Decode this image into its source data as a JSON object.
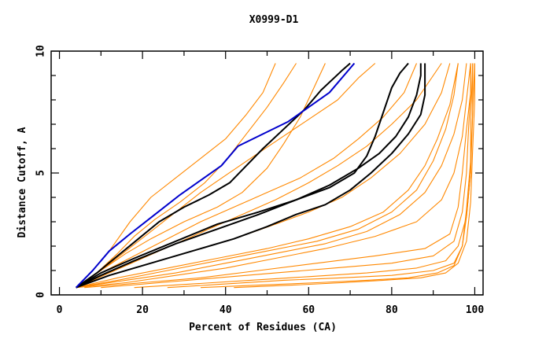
{
  "chart_data": {
    "type": "line",
    "title": "X0999-D1",
    "xlabel": "Percent of Residues (CA)",
    "ylabel": "Distance Cutoff, A",
    "xlim": [
      -2,
      102
    ],
    "ylim": [
      0,
      10
    ],
    "x_ticks": [
      0,
      20,
      40,
      60,
      80,
      100
    ],
    "x_tick_labels": [
      "0",
      "20",
      "40",
      "60",
      "80",
      "100"
    ],
    "x_minor_ticks": [
      10,
      30,
      50,
      70,
      90
    ],
    "y_ticks": [
      0,
      5,
      10
    ],
    "y_tick_labels": [
      "0",
      "5",
      "10"
    ],
    "y_minor_ticks": [
      1,
      2,
      3,
      4,
      6,
      7,
      8,
      9
    ],
    "grid": false,
    "colors": {
      "orange": "#ff8800",
      "black": "#000000",
      "blue": "#0000cc"
    },
    "series": [
      {
        "name": "highlight-blue",
        "color": "blue",
        "points": [
          [
            4,
            0.3
          ],
          [
            8,
            1.0
          ],
          [
            12,
            1.8
          ],
          [
            17,
            2.5
          ],
          [
            23,
            3.3
          ],
          [
            29,
            4.1
          ],
          [
            34,
            4.7
          ],
          [
            39,
            5.3
          ],
          [
            43,
            6.1
          ],
          [
            49,
            6.6
          ],
          [
            55,
            7.1
          ],
          [
            60,
            7.7
          ],
          [
            65,
            8.3
          ],
          [
            71,
            9.5
          ]
        ]
      },
      {
        "name": "black-1",
        "color": "black",
        "points": [
          [
            4,
            0.3
          ],
          [
            9,
            0.9
          ],
          [
            14,
            1.6
          ],
          [
            19,
            2.3
          ],
          [
            24,
            3.0
          ],
          [
            30,
            3.6
          ],
          [
            36,
            4.1
          ],
          [
            41,
            4.6
          ],
          [
            45,
            5.3
          ],
          [
            49,
            6.0
          ],
          [
            54,
            6.8
          ],
          [
            59,
            7.6
          ],
          [
            63,
            8.4
          ],
          [
            68,
            9.2
          ],
          [
            70,
            9.5
          ]
        ]
      },
      {
        "name": "black-2",
        "color": "black",
        "points": [
          [
            4,
            0.3
          ],
          [
            10,
            0.9
          ],
          [
            18,
            1.5
          ],
          [
            28,
            2.2
          ],
          [
            38,
            2.9
          ],
          [
            48,
            3.4
          ],
          [
            57,
            3.9
          ],
          [
            65,
            4.4
          ],
          [
            71,
            5.0
          ],
          [
            74,
            5.7
          ],
          [
            76,
            6.5
          ],
          [
            78,
            7.5
          ],
          [
            80,
            8.5
          ],
          [
            82,
            9.1
          ],
          [
            84,
            9.5
          ]
        ]
      },
      {
        "name": "black-3",
        "color": "black",
        "points": [
          [
            4,
            0.3
          ],
          [
            10,
            0.8
          ],
          [
            18,
            1.4
          ],
          [
            28,
            2.1
          ],
          [
            38,
            2.7
          ],
          [
            48,
            3.3
          ],
          [
            57,
            3.9
          ],
          [
            65,
            4.5
          ],
          [
            72,
            5.2
          ],
          [
            77,
            5.8
          ],
          [
            81,
            6.5
          ],
          [
            84,
            7.3
          ],
          [
            86,
            8.2
          ],
          [
            87,
            9.0
          ],
          [
            87,
            9.5
          ]
        ]
      },
      {
        "name": "black-4",
        "color": "black",
        "points": [
          [
            4,
            0.3
          ],
          [
            12,
            0.8
          ],
          [
            22,
            1.3
          ],
          [
            32,
            1.8
          ],
          [
            42,
            2.3
          ],
          [
            50,
            2.8
          ],
          [
            57,
            3.3
          ],
          [
            64,
            3.7
          ],
          [
            70,
            4.3
          ],
          [
            75,
            5.0
          ],
          [
            80,
            5.8
          ],
          [
            84,
            6.6
          ],
          [
            87,
            7.4
          ],
          [
            88,
            8.2
          ],
          [
            88,
            9.0
          ],
          [
            88,
            9.5
          ]
        ]
      },
      {
        "name": "orange-1",
        "color": "orange",
        "points": [
          [
            4,
            0.3
          ],
          [
            8,
            1.0
          ],
          [
            12,
            1.8
          ],
          [
            17,
            3.0
          ],
          [
            22,
            4.0
          ],
          [
            28,
            4.8
          ],
          [
            34,
            5.6
          ],
          [
            40,
            6.4
          ],
          [
            45,
            7.4
          ],
          [
            49,
            8.3
          ],
          [
            52,
            9.5
          ]
        ]
      },
      {
        "name": "orange-2",
        "color": "orange",
        "points": [
          [
            4,
            0.3
          ],
          [
            9,
            0.9
          ],
          [
            14,
            1.7
          ],
          [
            18,
            2.4
          ],
          [
            23,
            3.1
          ],
          [
            29,
            3.8
          ],
          [
            35,
            4.6
          ],
          [
            40,
            5.5
          ],
          [
            45,
            6.6
          ],
          [
            50,
            7.7
          ],
          [
            54,
            8.7
          ],
          [
            57,
            9.5
          ]
        ]
      },
      {
        "name": "orange-3",
        "color": "orange",
        "points": [
          [
            4,
            0.3
          ],
          [
            10,
            1.0
          ],
          [
            16,
            1.7
          ],
          [
            22,
            2.3
          ],
          [
            30,
            3.0
          ],
          [
            38,
            3.6
          ],
          [
            44,
            4.2
          ],
          [
            50,
            5.2
          ],
          [
            54,
            6.2
          ],
          [
            58,
            7.3
          ],
          [
            61,
            8.4
          ],
          [
            64,
            9.5
          ]
        ]
      },
      {
        "name": "orange-4",
        "color": "orange",
        "points": [
          [
            4,
            0.3
          ],
          [
            10,
            1.0
          ],
          [
            16,
            1.8
          ],
          [
            22,
            2.6
          ],
          [
            28,
            3.4
          ],
          [
            34,
            4.2
          ],
          [
            40,
            4.9
          ],
          [
            46,
            5.6
          ],
          [
            53,
            6.4
          ],
          [
            60,
            7.2
          ],
          [
            67,
            8.0
          ],
          [
            72,
            8.9
          ],
          [
            76,
            9.5
          ]
        ]
      },
      {
        "name": "orange-5",
        "color": "orange",
        "points": [
          [
            4,
            0.3
          ],
          [
            10,
            0.9
          ],
          [
            18,
            1.6
          ],
          [
            26,
            2.3
          ],
          [
            34,
            3.0
          ],
          [
            42,
            3.6
          ],
          [
            50,
            4.2
          ],
          [
            58,
            4.8
          ],
          [
            66,
            5.6
          ],
          [
            72,
            6.4
          ],
          [
            78,
            7.3
          ],
          [
            83,
            8.3
          ],
          [
            86,
            9.5
          ]
        ]
      },
      {
        "name": "orange-6",
        "color": "orange",
        "points": [
          [
            4,
            0.3
          ],
          [
            12,
            0.9
          ],
          [
            20,
            1.5
          ],
          [
            28,
            2.1
          ],
          [
            36,
            2.7
          ],
          [
            44,
            3.3
          ],
          [
            52,
            3.9
          ],
          [
            60,
            4.6
          ],
          [
            67,
            5.3
          ],
          [
            74,
            6.1
          ],
          [
            80,
            7.0
          ],
          [
            86,
            8.0
          ],
          [
            90,
            9.0
          ],
          [
            92,
            9.5
          ]
        ]
      },
      {
        "name": "orange-7",
        "color": "orange",
        "points": [
          [
            4,
            0.3
          ],
          [
            12,
            0.8
          ],
          [
            22,
            1.3
          ],
          [
            32,
            1.8
          ],
          [
            42,
            2.3
          ],
          [
            52,
            2.9
          ],
          [
            60,
            3.4
          ],
          [
            68,
            4.0
          ],
          [
            75,
            4.8
          ],
          [
            82,
            5.8
          ],
          [
            88,
            7.0
          ],
          [
            92,
            8.3
          ],
          [
            94,
            9.5
          ]
        ]
      },
      {
        "name": "orange-8",
        "color": "orange",
        "points": [
          [
            4,
            0.3
          ],
          [
            14,
            0.7
          ],
          [
            26,
            1.1
          ],
          [
            38,
            1.5
          ],
          [
            50,
            1.9
          ],
          [
            60,
            2.3
          ],
          [
            70,
            2.8
          ],
          [
            78,
            3.4
          ],
          [
            84,
            4.3
          ],
          [
            88,
            5.3
          ],
          [
            91,
            6.4
          ],
          [
            94,
            7.8
          ],
          [
            96,
            9.5
          ]
        ]
      },
      {
        "name": "orange-9",
        "color": "orange",
        "points": [
          [
            4,
            0.3
          ],
          [
            14,
            0.6
          ],
          [
            26,
            1.0
          ],
          [
            38,
            1.4
          ],
          [
            50,
            1.8
          ],
          [
            62,
            2.2
          ],
          [
            72,
            2.7
          ],
          [
            80,
            3.4
          ],
          [
            86,
            4.3
          ],
          [
            90,
            5.5
          ],
          [
            93,
            6.8
          ],
          [
            95,
            8.2
          ],
          [
            96,
            9.5
          ]
        ]
      },
      {
        "name": "orange-10",
        "color": "orange",
        "points": [
          [
            4,
            0.3
          ],
          [
            16,
            0.6
          ],
          [
            28,
            0.9
          ],
          [
            40,
            1.3
          ],
          [
            52,
            1.7
          ],
          [
            64,
            2.1
          ],
          [
            74,
            2.6
          ],
          [
            82,
            3.3
          ],
          [
            88,
            4.2
          ],
          [
            92,
            5.3
          ],
          [
            95,
            6.6
          ],
          [
            97,
            8.0
          ],
          [
            98,
            9.5
          ]
        ]
      },
      {
        "name": "orange-11",
        "color": "orange",
        "points": [
          [
            4,
            0.3
          ],
          [
            16,
            0.5
          ],
          [
            28,
            0.8
          ],
          [
            40,
            1.1
          ],
          [
            52,
            1.5
          ],
          [
            64,
            1.9
          ],
          [
            76,
            2.4
          ],
          [
            86,
            3.0
          ],
          [
            92,
            3.9
          ],
          [
            95,
            5.0
          ],
          [
            97,
            6.5
          ],
          [
            98,
            8.0
          ],
          [
            99,
            9.5
          ]
        ]
      },
      {
        "name": "orange-12",
        "color": "orange",
        "points": [
          [
            6,
            0.3
          ],
          [
            20,
            0.5
          ],
          [
            34,
            0.7
          ],
          [
            48,
            1.0
          ],
          [
            62,
            1.3
          ],
          [
            76,
            1.6
          ],
          [
            88,
            1.9
          ],
          [
            94,
            2.5
          ],
          [
            96,
            3.6
          ],
          [
            97,
            5.0
          ],
          [
            98,
            6.8
          ],
          [
            99,
            8.3
          ],
          [
            99,
            9.5
          ]
        ]
      },
      {
        "name": "orange-13",
        "color": "orange",
        "points": [
          [
            10,
            0.3
          ],
          [
            24,
            0.5
          ],
          [
            38,
            0.7
          ],
          [
            52,
            0.9
          ],
          [
            66,
            1.1
          ],
          [
            80,
            1.3
          ],
          [
            90,
            1.6
          ],
          [
            95,
            2.2
          ],
          [
            97,
            3.4
          ],
          [
            98,
            5.0
          ],
          [
            98.5,
            6.8
          ],
          [
            99,
            8.2
          ],
          [
            99,
            9.5
          ]
        ]
      },
      {
        "name": "orange-14",
        "color": "orange",
        "points": [
          [
            18,
            0.3
          ],
          [
            32,
            0.45
          ],
          [
            46,
            0.6
          ],
          [
            60,
            0.75
          ],
          [
            74,
            0.9
          ],
          [
            86,
            1.1
          ],
          [
            93,
            1.4
          ],
          [
            96,
            2.0
          ],
          [
            98,
            3.2
          ],
          [
            99,
            5.0
          ],
          [
            99,
            7.0
          ],
          [
            99.5,
            9.5
          ]
        ]
      },
      {
        "name": "orange-15",
        "color": "orange",
        "points": [
          [
            26,
            0.3
          ],
          [
            40,
            0.45
          ],
          [
            54,
            0.6
          ],
          [
            68,
            0.7
          ],
          [
            80,
            0.8
          ],
          [
            90,
            1.0
          ],
          [
            95,
            1.3
          ],
          [
            97,
            2.0
          ],
          [
            98,
            3.2
          ],
          [
            99,
            5.0
          ],
          [
            99.5,
            7.5
          ],
          [
            99.5,
            9.5
          ]
        ]
      },
      {
        "name": "orange-16",
        "color": "orange",
        "points": [
          [
            34,
            0.3
          ],
          [
            48,
            0.4
          ],
          [
            62,
            0.5
          ],
          [
            74,
            0.6
          ],
          [
            84,
            0.7
          ],
          [
            91,
            0.9
          ],
          [
            95,
            1.2
          ],
          [
            97,
            2.0
          ],
          [
            98,
            3.5
          ],
          [
            99,
            5.5
          ],
          [
            99.5,
            7.5
          ],
          [
            100,
            9.5
          ]
        ]
      },
      {
        "name": "orange-17",
        "color": "orange",
        "points": [
          [
            42,
            0.3
          ],
          [
            56,
            0.4
          ],
          [
            68,
            0.5
          ],
          [
            78,
            0.6
          ],
          [
            87,
            0.7
          ],
          [
            93,
            0.9
          ],
          [
            96,
            1.3
          ],
          [
            98,
            2.2
          ],
          [
            99,
            3.8
          ],
          [
            99.5,
            6.0
          ],
          [
            100,
            8.0
          ],
          [
            100,
            9.5
          ]
        ]
      }
    ]
  }
}
